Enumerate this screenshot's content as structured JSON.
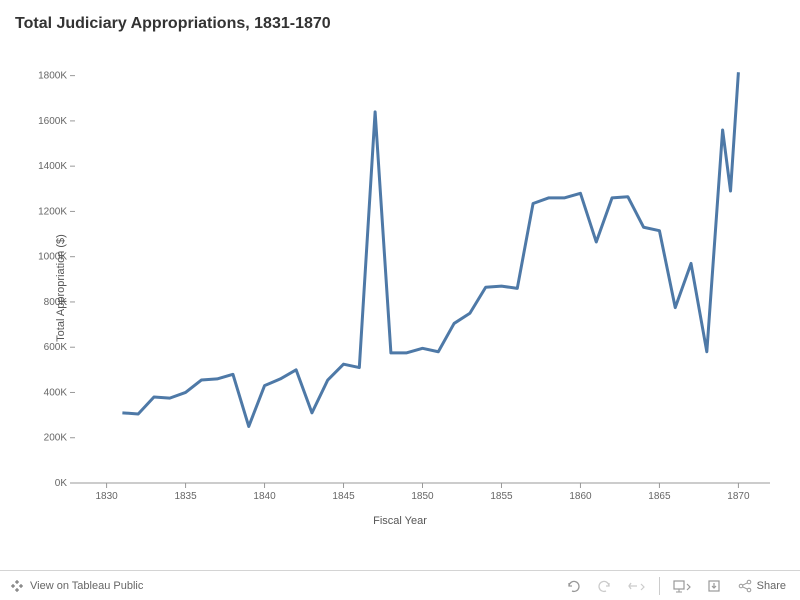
{
  "chart": {
    "type": "line",
    "title": "Total Judiciary Appropriations, 1831-1870",
    "xlabel": "Fiscal Year",
    "ylabel": "Total Appropriation ($)",
    "line_color": "#4e79a7",
    "line_width": 3,
    "background_color": "#ffffff",
    "axis_color": "#999999",
    "text_color": "#666666",
    "title_fontsize": 16,
    "label_fontsize": 11,
    "tick_fontsize": 10,
    "xlim": [
      1828,
      1872
    ],
    "ylim": [
      0,
      1900000
    ],
    "xticks": [
      1830,
      1835,
      1840,
      1845,
      1850,
      1855,
      1860,
      1865,
      1870
    ],
    "yticks": [
      0,
      200000,
      400000,
      600000,
      800000,
      1000000,
      1200000,
      1400000,
      1600000,
      1800000
    ],
    "ytick_labels": [
      "0K",
      "200K",
      "400K",
      "600K",
      "800K",
      "1000K",
      "1200K",
      "1400K",
      "1600K",
      "1800K"
    ],
    "years": [
      1831,
      1832,
      1833,
      1834,
      1835,
      1836,
      1837,
      1838,
      1839,
      1840,
      1841,
      1842,
      1843,
      1844,
      1845,
      1846,
      1847,
      1848,
      1849,
      1850,
      1851,
      1852,
      1853,
      1854,
      1855,
      1856,
      1857,
      1858,
      1859,
      1860,
      1861,
      1862,
      1863,
      1864,
      1865,
      1866,
      1867,
      1868,
      1869,
      1870
    ],
    "values": [
      310000,
      305000,
      380000,
      375000,
      400000,
      455000,
      460000,
      480000,
      250000,
      430000,
      460000,
      500000,
      310000,
      455000,
      525000,
      510000,
      1640000,
      575000,
      575000,
      595000,
      580000,
      705000,
      750000,
      865000,
      870000,
      860000,
      1235000,
      1260000,
      1260000,
      1280000,
      1065000,
      1260000,
      1265000,
      1130000,
      1115000,
      775000,
      970000,
      580000,
      1560000,
      1290000,
      1815000
    ],
    "years_extended": [
      1831,
      1832,
      1833,
      1834,
      1835,
      1836,
      1837,
      1838,
      1839,
      1840,
      1841,
      1842,
      1843,
      1844,
      1845,
      1846,
      1847,
      1848,
      1849,
      1850,
      1851,
      1852,
      1853,
      1854,
      1855,
      1856,
      1857,
      1858,
      1859,
      1860,
      1861,
      1862,
      1863,
      1864,
      1865,
      1866,
      1867,
      1868,
      1869,
      1869.5,
      1870
    ]
  },
  "toolbar": {
    "tableau_label": "View on Tableau Public",
    "share_label": "Share"
  }
}
